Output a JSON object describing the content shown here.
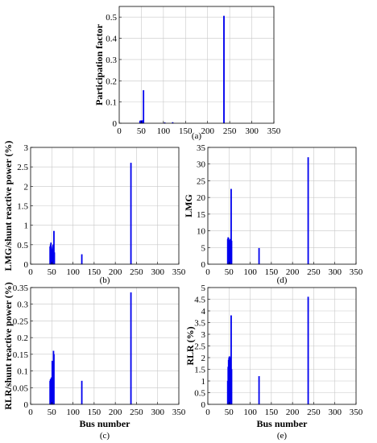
{
  "chart_data": [
    {
      "id": "a",
      "type": "bar",
      "caption": "(a)",
      "xlabel": "",
      "ylabel": "Participation factor",
      "xlim": [
        0,
        350
      ],
      "ylim": [
        0,
        0.55
      ],
      "xticks": [
        0,
        50,
        100,
        150,
        200,
        250,
        300,
        350
      ],
      "yticks": [
        0,
        0.1,
        0.2,
        0.3,
        0.4,
        0.5
      ],
      "grid": true,
      "bars": [
        {
          "x": 47,
          "y": 0.01
        },
        {
          "x": 48,
          "y": 0.012
        },
        {
          "x": 49,
          "y": 0.012
        },
        {
          "x": 50,
          "y": 0.012
        },
        {
          "x": 51,
          "y": 0.012
        },
        {
          "x": 52,
          "y": 0.013
        },
        {
          "x": 53,
          "y": 0.012
        },
        {
          "x": 55,
          "y": 0.155
        },
        {
          "x": 103,
          "y": 0.003
        },
        {
          "x": 121,
          "y": 0.004
        },
        {
          "x": 237,
          "y": 0.505
        }
      ]
    },
    {
      "id": "b",
      "type": "bar",
      "caption": "(b)",
      "xlabel": "",
      "ylabel": "LMG/shunt reactive power (%)",
      "xlim": [
        0,
        350
      ],
      "ylim": [
        0,
        3
      ],
      "xticks": [
        0,
        50,
        100,
        150,
        200,
        250,
        300,
        350
      ],
      "yticks": [
        0,
        0.5,
        1,
        1.5,
        2,
        2.5,
        3
      ],
      "grid": true,
      "bars": [
        {
          "x": 46,
          "y": 0.45
        },
        {
          "x": 47,
          "y": 0.5
        },
        {
          "x": 48,
          "y": 0.55
        },
        {
          "x": 49,
          "y": 0.45
        },
        {
          "x": 50,
          "y": 0.35
        },
        {
          "x": 51,
          "y": 0.3
        },
        {
          "x": 52,
          "y": 0.4
        },
        {
          "x": 53,
          "y": 0.5
        },
        {
          "x": 54,
          "y": 0.3
        },
        {
          "x": 55,
          "y": 0.85
        },
        {
          "x": 56,
          "y": 0.3
        },
        {
          "x": 121,
          "y": 0.25
        },
        {
          "x": 237,
          "y": 2.6
        }
      ]
    },
    {
      "id": "d",
      "type": "bar",
      "caption": "(d)",
      "xlabel": "",
      "ylabel": "LMG",
      "xlim": [
        0,
        350
      ],
      "ylim": [
        0,
        35
      ],
      "xticks": [
        0,
        50,
        100,
        150,
        200,
        250,
        300,
        350
      ],
      "yticks": [
        0,
        5,
        10,
        15,
        20,
        25,
        30,
        35
      ],
      "grid": true,
      "bars": [
        {
          "x": 47,
          "y": 7.5
        },
        {
          "x": 48,
          "y": 8
        },
        {
          "x": 49,
          "y": 7.8
        },
        {
          "x": 50,
          "y": 7.2
        },
        {
          "x": 51,
          "y": 6.5
        },
        {
          "x": 52,
          "y": 7
        },
        {
          "x": 53,
          "y": 7.5
        },
        {
          "x": 54,
          "y": 6
        },
        {
          "x": 55,
          "y": 22.5
        },
        {
          "x": 56,
          "y": 7
        },
        {
          "x": 121,
          "y": 4.8
        },
        {
          "x": 237,
          "y": 32
        }
      ]
    },
    {
      "id": "c",
      "type": "bar",
      "caption": "(c)",
      "xlabel": "Bus number",
      "ylabel": "RLR/shunt reactive power (%)",
      "xlim": [
        0,
        350
      ],
      "ylim": [
        0,
        0.35
      ],
      "xticks": [
        0,
        50,
        100,
        150,
        200,
        250,
        300,
        350
      ],
      "yticks": [
        0,
        0.05,
        0.1,
        0.15,
        0.2,
        0.25,
        0.3,
        0.35
      ],
      "grid": true,
      "bars": [
        {
          "x": 46,
          "y": 0.07
        },
        {
          "x": 47,
          "y": 0.075
        },
        {
          "x": 48,
          "y": 0.075
        },
        {
          "x": 49,
          "y": 0.08
        },
        {
          "x": 50,
          "y": 0.075
        },
        {
          "x": 51,
          "y": 0.13
        },
        {
          "x": 52,
          "y": 0.08
        },
        {
          "x": 53,
          "y": 0.07
        },
        {
          "x": 54,
          "y": 0.16
        },
        {
          "x": 55,
          "y": 0.15
        },
        {
          "x": 121,
          "y": 0.07
        },
        {
          "x": 237,
          "y": 0.335
        }
      ]
    },
    {
      "id": "e",
      "type": "bar",
      "caption": "(e)",
      "xlabel": "Bus number",
      "ylabel": "RLR (%)",
      "xlim": [
        0,
        350
      ],
      "ylim": [
        0,
        5
      ],
      "xticks": [
        0,
        50,
        100,
        150,
        200,
        250,
        300,
        350
      ],
      "yticks": [
        0,
        0.5,
        1,
        1.5,
        2,
        2.5,
        3,
        3.5,
        4,
        4.5,
        5
      ],
      "grid": true,
      "bars": [
        {
          "x": 47,
          "y": 1.0
        },
        {
          "x": 48,
          "y": 1.6
        },
        {
          "x": 49,
          "y": 1.9
        },
        {
          "x": 50,
          "y": 2.0
        },
        {
          "x": 51,
          "y": 2.05
        },
        {
          "x": 52,
          "y": 1.9
        },
        {
          "x": 53,
          "y": 2.0
        },
        {
          "x": 54,
          "y": 1.0
        },
        {
          "x": 55,
          "y": 3.8
        },
        {
          "x": 56,
          "y": 1.5
        },
        {
          "x": 121,
          "y": 1.2
        },
        {
          "x": 237,
          "y": 4.6
        }
      ]
    }
  ]
}
